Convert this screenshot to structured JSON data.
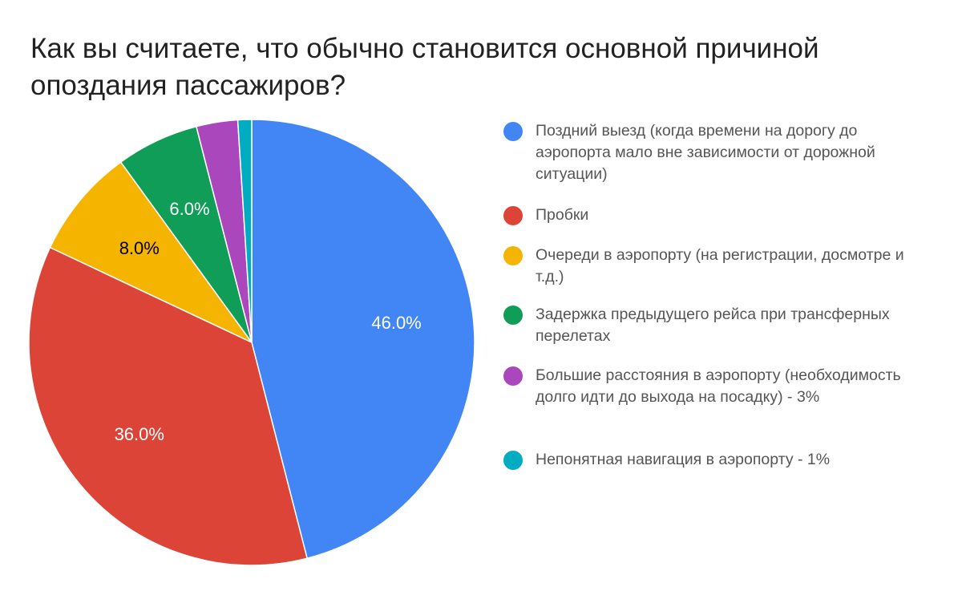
{
  "chart_data": {
    "type": "pie",
    "title": "Как вы считаете, что обычно становится основной причиной опоздания пассажиров?",
    "slices": [
      {
        "label": "Поздний выезд (когда времени на дорогу до аэропорта мало вне зависимости от дорожной ситуации)",
        "value": 46.0,
        "display": "46.0%",
        "color": "#4285F4",
        "label_color": "#ffffff"
      },
      {
        "label": "Пробки",
        "value": 36.0,
        "display": "36.0%",
        "color": "#DB4437",
        "label_color": "#ffffff"
      },
      {
        "label": "Очереди в аэропорту (на регистрации, досмотре и т.д.)",
        "value": 8.0,
        "display": "8.0%",
        "color": "#F4B400",
        "label_color": "#000000"
      },
      {
        "label": "Задержка предыдущего рейса при трансферных перелетах",
        "value": 6.0,
        "display": "6.0%",
        "color": "#0F9D58",
        "label_color": "#ffffff"
      },
      {
        "label": "Большие расстояния в аэропорту (необходимость долго идти до выхода на посадку) - 3%",
        "value": 3.0,
        "display": "",
        "color": "#AB47BC",
        "label_color": "#ffffff"
      },
      {
        "label": "Непонятная навигация в аэропорту - 1%",
        "value": 1.0,
        "display": "",
        "color": "#00ACC1",
        "label_color": "#ffffff"
      }
    ],
    "legend_position": "right",
    "start_angle": "12 o'clock",
    "direction": "clockwise"
  }
}
